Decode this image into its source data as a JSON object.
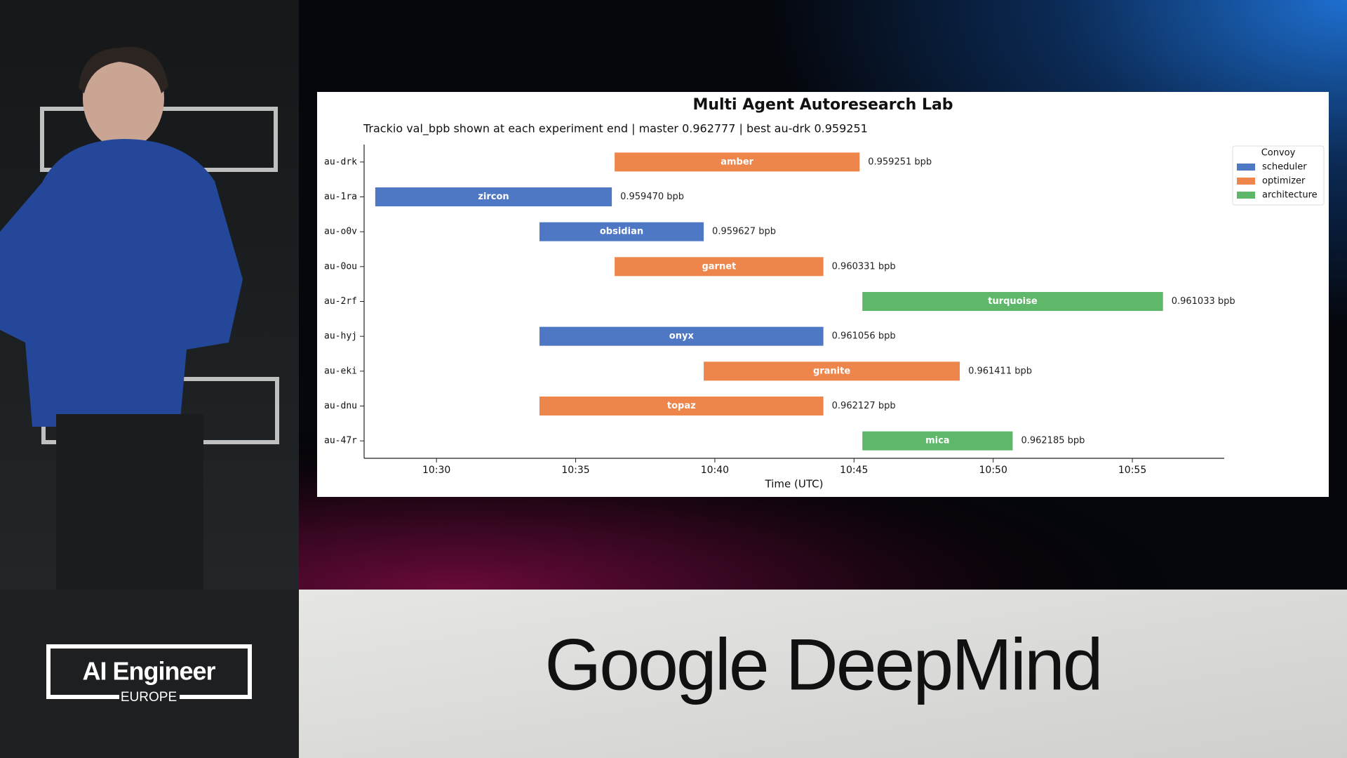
{
  "chart_data": {
    "type": "gantt",
    "title": "Multi Agent Autoresearch Lab",
    "subtitle": "Trackio val_bpb shown at each experiment end | master 0.962777 | best au-drk 0.959251",
    "xlabel": "Time (UTC)",
    "xlim": [
      627.4,
      658.3
    ],
    "xticks": [
      {
        "value": 630,
        "label": "10:30"
      },
      {
        "value": 635,
        "label": "10:35"
      },
      {
        "value": 640,
        "label": "10:40"
      },
      {
        "value": 645,
        "label": "10:45"
      },
      {
        "value": 650,
        "label": "10:50"
      },
      {
        "value": 655,
        "label": "10:55"
      }
    ],
    "grid": false,
    "categories": [
      "au-drk",
      "au-1ra",
      "au-o0v",
      "au-0ou",
      "au-2rf",
      "au-hyj",
      "au-eki",
      "au-dnu",
      "au-47r"
    ],
    "legend": {
      "title": "Convoy",
      "loc": "upper right"
    },
    "series": [
      {
        "name": "scheduler",
        "color": "#4f78c4"
      },
      {
        "name": "optimizer",
        "color": "#ee854a"
      },
      {
        "name": "architecture",
        "color": "#5fb86a"
      }
    ],
    "bars": [
      {
        "label": "amber",
        "convoy": "optimizer",
        "start": 636.4,
        "end": 645.2
      },
      {
        "label": "zircon",
        "convoy": "scheduler",
        "start": 627.8,
        "end": 636.3
      },
      {
        "label": "obsidian",
        "convoy": "scheduler",
        "start": 633.7,
        "end": 639.6
      },
      {
        "label": "garnet",
        "convoy": "optimizer",
        "start": 636.4,
        "end": 643.9
      },
      {
        "label": "turquoise",
        "convoy": "architecture",
        "start": 645.3,
        "end": 656.1
      },
      {
        "label": "onyx",
        "convoy": "scheduler",
        "start": 633.7,
        "end": 643.9
      },
      {
        "label": "granite",
        "convoy": "optimizer",
        "start": 639.6,
        "end": 648.8
      },
      {
        "label": "topaz",
        "convoy": "optimizer",
        "start": 633.7,
        "end": 643.9
      },
      {
        "label": "mica",
        "convoy": "architecture",
        "start": 645.3,
        "end": 650.7
      }
    ],
    "values": [
      0.959251,
      0.95947,
      0.959627,
      0.960331,
      0.961033,
      0.961056,
      0.961411,
      0.962127,
      0.962185
    ],
    "value_labels": [
      "0.959251 bpb",
      "0.959470 bpb",
      "0.959627 bpb",
      "0.960331 bpb",
      "0.961033 bpb",
      "0.961056 bpb",
      "0.961411 bpb",
      "0.962127 bpb",
      "0.962185 bpb"
    ]
  },
  "branding": {
    "event": "AI Engineer",
    "region": "EUROPE",
    "sponsor": "Google DeepMind"
  }
}
